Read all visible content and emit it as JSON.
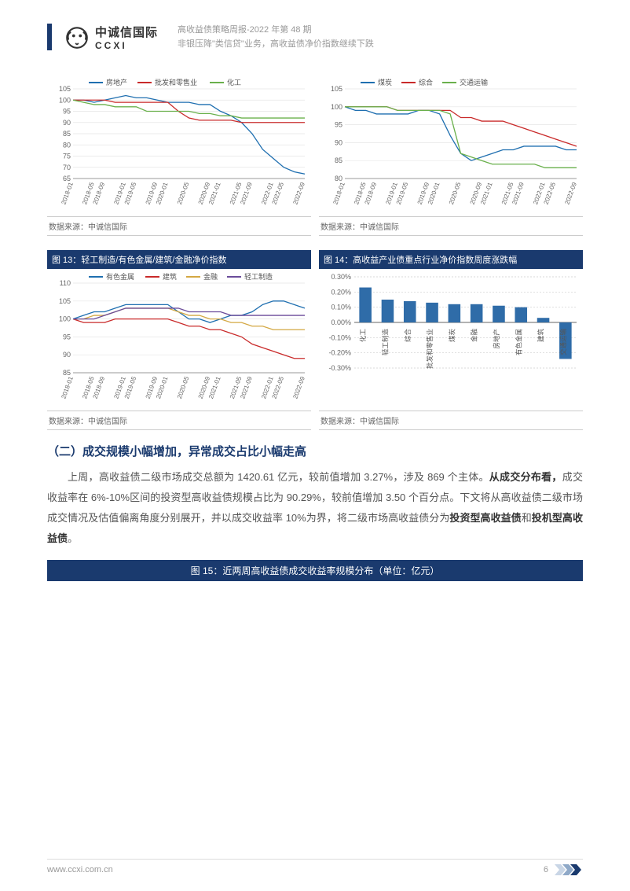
{
  "header": {
    "logo_cn": "中诚信国际",
    "logo_en": "CCXI",
    "meta_line1": "高收益债策略周报-2022 年第 48 期",
    "meta_line2": "非银压降\"类信贷\"业务，高收益债净价指数继续下跌"
  },
  "charts": {
    "c11": {
      "series": [
        {
          "name": "房地产",
          "color": "#1f6fb0",
          "data": [
            100,
            100,
            99,
            100,
            101,
            102,
            101,
            101,
            100,
            99,
            99,
            99,
            98,
            98,
            95,
            93,
            90,
            85,
            78,
            74,
            70,
            68,
            67
          ]
        },
        {
          "name": "批发和零售业",
          "color": "#c92a2a",
          "data": [
            100,
            100,
            100,
            100,
            99,
            99,
            99,
            99,
            99,
            99,
            95,
            92,
            91,
            91,
            91,
            91,
            90,
            90,
            90,
            90,
            90,
            90,
            90
          ]
        },
        {
          "name": "化工",
          "color": "#6ab04c",
          "data": [
            100,
            99,
            98,
            98,
            97,
            97,
            97,
            95,
            95,
            95,
            95,
            95,
            94,
            94,
            93,
            93,
            92,
            92,
            92,
            92,
            92,
            92,
            92
          ]
        }
      ],
      "x_labels": [
        "2018-01",
        "2018-05",
        "2018-09",
        "2019-01",
        "2019-05",
        "2019-09",
        "2020-01",
        "2020-05",
        "2020-09",
        "2021-01",
        "2021-05",
        "2021-09",
        "2022-01",
        "2022-05",
        "2022-09"
      ],
      "ylim": [
        65,
        105
      ],
      "ytick_step": 5,
      "grid_color": "#e5e5e5",
      "source": "数据来源：中诚信国际"
    },
    "c12": {
      "series": [
        {
          "name": "煤炭",
          "color": "#1f6fb0",
          "data": [
            100,
            99,
            99,
            98,
            98,
            98,
            98,
            99,
            99,
            98,
            92,
            87,
            85,
            86,
            87,
            88,
            88,
            89,
            89,
            89,
            89,
            88,
            88
          ]
        },
        {
          "name": "综合",
          "color": "#c92a2a",
          "data": [
            100,
            100,
            100,
            100,
            100,
            99,
            99,
            99,
            99,
            99,
            99,
            97,
            97,
            96,
            96,
            96,
            95,
            94,
            93,
            92,
            91,
            90,
            89
          ]
        },
        {
          "name": "交通运输",
          "color": "#6ab04c",
          "data": [
            100,
            100,
            100,
            100,
            100,
            99,
            99,
            99,
            99,
            99,
            98,
            87,
            86,
            85,
            84,
            84,
            84,
            84,
            84,
            83,
            83,
            83,
            83
          ]
        }
      ],
      "x_labels": [
        "2018-01",
        "2018-05",
        "2018-09",
        "2019-01",
        "2019-05",
        "2019-09",
        "2020-01",
        "2020-05",
        "2020-09",
        "2021-01",
        "2021-05",
        "2021-09",
        "2022-01",
        "2022-05",
        "2022-09"
      ],
      "ylim": [
        80,
        105
      ],
      "ytick_step": 5,
      "grid_color": "#e5e5e5",
      "source": "数据来源：中诚信国际"
    },
    "c13": {
      "title": "图 13：轻工制造/有色金属/建筑/金融净价指数",
      "series": [
        {
          "name": "有色金属",
          "color": "#1f6fb0",
          "data": [
            100,
            101,
            102,
            102,
            103,
            104,
            104,
            104,
            104,
            104,
            102,
            100,
            100,
            99,
            100,
            101,
            101,
            102,
            104,
            105,
            105,
            104,
            103
          ]
        },
        {
          "name": "建筑",
          "color": "#c92a2a",
          "data": [
            100,
            99,
            99,
            99,
            100,
            100,
            100,
            100,
            100,
            100,
            99,
            98,
            98,
            97,
            97,
            96,
            95,
            93,
            92,
            91,
            90,
            89,
            89
          ]
        },
        {
          "name": "金融",
          "color": "#d4a843",
          "data": [
            100,
            100,
            101,
            101,
            102,
            103,
            103,
            103,
            103,
            103,
            102,
            101,
            101,
            100,
            100,
            99,
            99,
            98,
            98,
            97,
            97,
            97,
            97
          ]
        },
        {
          "name": "轻工制造",
          "color": "#6b4c9a",
          "data": [
            100,
            100,
            100,
            101,
            102,
            103,
            103,
            103,
            103,
            103,
            103,
            102,
            102,
            102,
            102,
            101,
            101,
            101,
            101,
            101,
            101,
            101,
            101
          ]
        }
      ],
      "x_labels": [
        "2018-01",
        "2018-05",
        "2018-09",
        "2019-01",
        "2019-05",
        "2019-09",
        "2020-01",
        "2020-05",
        "2020-09",
        "2021-01",
        "2021-05",
        "2021-09",
        "2022-01",
        "2022-05",
        "2022-09"
      ],
      "ylim": [
        85,
        110
      ],
      "ytick_step": 5,
      "grid_color": "#e5e5e5",
      "source": "数据来源：中诚信国际"
    },
    "c14": {
      "title": "图 14：高收益产业债重点行业净价指数周度涨跌幅",
      "type": "bar",
      "categories": [
        "化工",
        "轻工制造",
        "综合",
        "批发和零售业",
        "煤炭",
        "金融",
        "房地产",
        "有色金属",
        "建筑",
        "交通运输"
      ],
      "values": [
        0.23,
        0.15,
        0.14,
        0.13,
        0.12,
        0.12,
        0.11,
        0.1,
        0.03,
        -0.24
      ],
      "bar_color": "#2f6ca8",
      "ylim": [
        -0.3,
        0.3
      ],
      "ytick_step": 0.1,
      "y_fmt_suffix": "%",
      "grid_color": "#cccccc",
      "source": "数据来源：中诚信国际"
    }
  },
  "section": {
    "title": "（二）成交规模小幅增加，异常成交占比小幅走高",
    "p_prefix": "上周，高收益债二级市场成交总额为 1420.61 亿元，较前值增加 3.27%，涉及 869 个主体。",
    "p_bold1": "从成交分布看，",
    "p_mid": "成交收益率在 6%-10%区间的投资型高收益债规模占比为 90.29%，较前值增加 3.50 个百分点。下文将从高收益债二级市场成交情况及估值偏离角度分别展开，并以成交收益率 10%为界，将二级市场高收益债分为",
    "p_bold2": "投资型高收益债",
    "p_and": "和",
    "p_bold3": "投机型高收益债",
    "p_end": "。"
  },
  "fig15_title": "图 15：近两周高收益债成交收益率规模分布（单位：亿元）",
  "footer": {
    "url": "www.ccxi.com.cn",
    "page": "6"
  },
  "colors": {
    "brand": "#1a3a6e",
    "chev1": "#c9d6e6",
    "chev2": "#8fa9c8",
    "chev3": "#1a3a6e"
  }
}
